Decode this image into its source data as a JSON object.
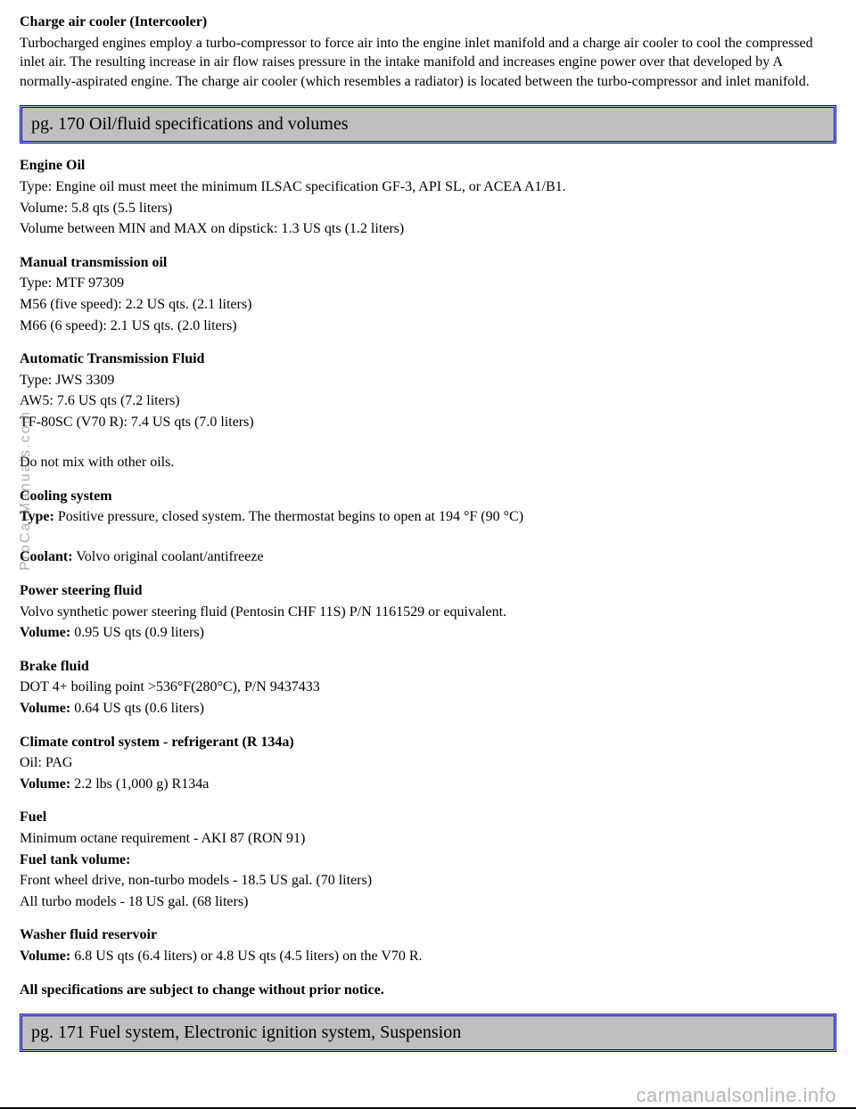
{
  "intro": {
    "heading": "Charge air cooler (Intercooler)",
    "text": "Turbocharged engines employ a turbo-compressor to force air into the engine inlet manifold and a charge air cooler to cool the compressed inlet air. The resulting increase in air flow raises pressure in the intake manifold and increases engine power over that developed by A normally-aspirated engine. The charge air cooler (which resembles a radiator) is located between the turbo-compressor and inlet manifold."
  },
  "header1": "pg. 170 Oil/fluid specifications and volumes",
  "engine_oil": {
    "heading": "Engine Oil",
    "line1": "Type: Engine oil must meet the minimum ILSAC specification GF-3, API SL, or ACEA A1/B1.",
    "line2": "Volume: 5.8 qts (5.5 liters)",
    "line3": "Volume between MIN and MAX on dipstick: 1.3 US qts (1.2 liters)"
  },
  "manual_trans": {
    "heading": "Manual transmission oil",
    "line1": "Type: MTF 97309",
    "line2": "M56 (five speed): 2.2 US qts. (2.1 liters)",
    "line3": "M66 (6 speed): 2.1 US qts. (2.0 liters)"
  },
  "auto_trans": {
    "heading": "Automatic Transmission Fluid",
    "line1": "Type: JWS 3309",
    "line2": "AW5: 7.6 US qts (7.2 liters)",
    "line3": "TF-80SC (V70 R): 7.4 US qts (7.0 liters)",
    "note": "Do not mix with other oils."
  },
  "cooling": {
    "heading": "Cooling system",
    "type_label": "Type:",
    "type_text": " Positive pressure, closed system. The thermostat begins to open at 194 °F (90 °C)",
    "coolant_label": "Coolant:",
    "coolant_text": " Volvo original coolant/antifreeze"
  },
  "power_steering": {
    "heading": "Power steering fluid",
    "line1": "Volvo synthetic power steering fluid (Pentosin CHF 11S) P/N 1161529 or equivalent.",
    "vol_label": "Volume:",
    "vol_text": " 0.95 US qts (0.9 liters)"
  },
  "brake": {
    "heading": "Brake fluid",
    "line1": "DOT 4+ boiling point >536°F(280°C), P/N 9437433",
    "vol_label": "Volume:",
    "vol_text": " 0.64 US qts (0.6 liters)"
  },
  "climate": {
    "heading": "Climate control system - refrigerant (R 134a)",
    "line1": "Oil: PAG",
    "vol_label": "Volume:",
    "vol_text": " 2.2 lbs (1,000 g) R134a"
  },
  "fuel": {
    "heading": "Fuel",
    "line1": "Minimum octane requirement - AKI 87 (RON 91)",
    "tank_label": "Fuel tank volume:",
    "line2": "Front wheel drive, non-turbo models - 18.5 US gal. (70 liters)",
    "line3": "All turbo models - 18 US gal. (68 liters)"
  },
  "washer": {
    "heading": "Washer fluid reservoir",
    "vol_label": "Volume:",
    "vol_text": " 6.8 US qts (6.4 liters) or 4.8 US qts (4.5 liters) on the V70 R."
  },
  "disclaimer": "All specifications are subject to change without prior notice.",
  "header2": "pg. 171 Fuel system, Electronic ignition system, Suspension",
  "watermark_side": "ProCarManuals.com",
  "watermark_footer": "carmanualsonline.info",
  "styles": {
    "page_bg": "#ffffff",
    "outer_bg": "#000000",
    "header_bg": "#bfbfbf",
    "header_border": "#0000cc",
    "body_font_size": 16,
    "header_font_size": 20
  }
}
